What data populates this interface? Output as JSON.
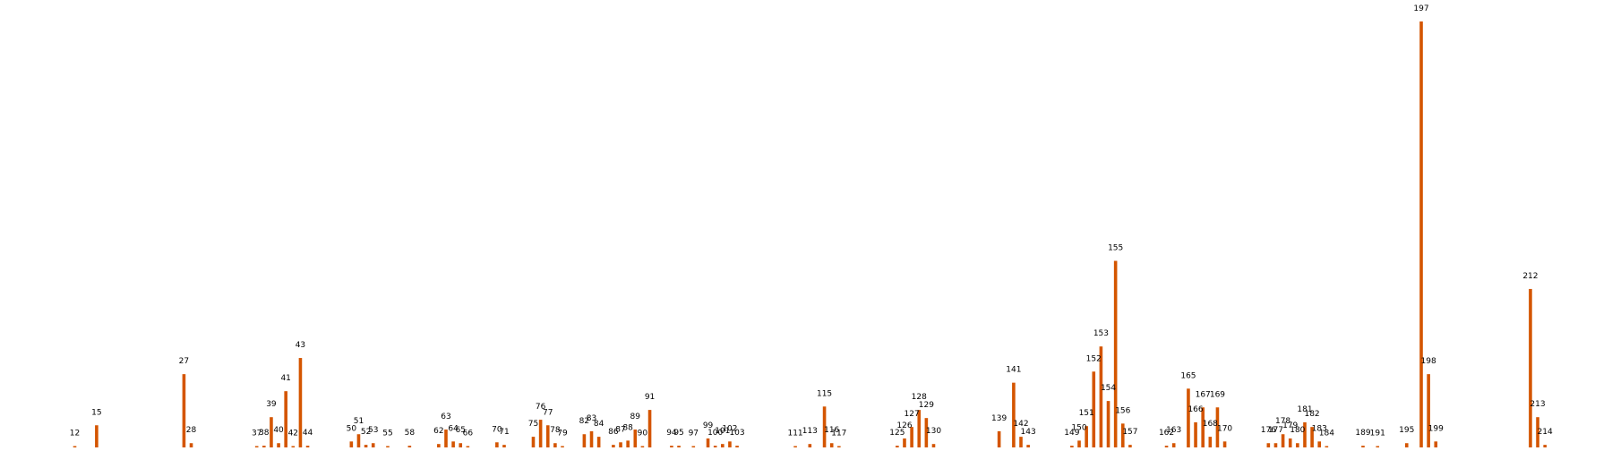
{
  "chart_data": {
    "type": "bar",
    "title": "",
    "xlabel": "",
    "ylabel": "",
    "grid": false,
    "legend": false,
    "bar_color": "#d45500",
    "ylim": [
      0,
      1
    ],
    "xlim": [
      0,
      225
    ],
    "bars": [
      {
        "x": 12,
        "label": "12",
        "value": 0.002
      },
      {
        "x": 15,
        "label": "15",
        "value": 0.052
      },
      {
        "x": 27,
        "label": "27",
        "value": 0.172
      },
      {
        "x": 28,
        "label": "28",
        "value": 0.01
      },
      {
        "x": 37,
        "label": "37",
        "value": 0.002
      },
      {
        "x": 38,
        "label": "38",
        "value": 0.004
      },
      {
        "x": 39,
        "label": "39",
        "value": 0.071
      },
      {
        "x": 40,
        "label": "40",
        "value": 0.01
      },
      {
        "x": 41,
        "label": "41",
        "value": 0.132
      },
      {
        "x": 42,
        "label": "42",
        "value": 0.002
      },
      {
        "x": 43,
        "label": "43",
        "value": 0.21
      },
      {
        "x": 44,
        "label": "44",
        "value": 0.004
      },
      {
        "x": 50,
        "label": "50",
        "value": 0.014
      },
      {
        "x": 51,
        "label": "51",
        "value": 0.031
      },
      {
        "x": 52,
        "label": "52",
        "value": 0.006
      },
      {
        "x": 53,
        "label": "53",
        "value": 0.01
      },
      {
        "x": 55,
        "label": "55",
        "value": 0.002
      },
      {
        "x": 58,
        "label": "58",
        "value": 0.004
      },
      {
        "x": 62,
        "label": "62",
        "value": 0.008
      },
      {
        "x": 63,
        "label": "63",
        "value": 0.042
      },
      {
        "x": 64,
        "label": "64",
        "value": 0.014
      },
      {
        "x": 65,
        "label": "65",
        "value": 0.01
      },
      {
        "x": 66,
        "label": "66",
        "value": 0.002
      },
      {
        "x": 70,
        "label": "70",
        "value": 0.012
      },
      {
        "x": 71,
        "label": "71",
        "value": 0.006
      },
      {
        "x": 75,
        "label": "75",
        "value": 0.025
      },
      {
        "x": 76,
        "label": "76",
        "value": 0.065
      },
      {
        "x": 77,
        "label": "77",
        "value": 0.052
      },
      {
        "x": 78,
        "label": "78",
        "value": 0.01
      },
      {
        "x": 79,
        "label": "79",
        "value": 0.002
      },
      {
        "x": 82,
        "label": "82",
        "value": 0.031
      },
      {
        "x": 83,
        "label": "83",
        "value": 0.038
      },
      {
        "x": 84,
        "label": "84",
        "value": 0.025
      },
      {
        "x": 86,
        "label": "86",
        "value": 0.006
      },
      {
        "x": 87,
        "label": "87",
        "value": 0.012
      },
      {
        "x": 88,
        "label": "88",
        "value": 0.016
      },
      {
        "x": 89,
        "label": "89",
        "value": 0.042
      },
      {
        "x": 90,
        "label": "90",
        "value": 0.002
      },
      {
        "x": 91,
        "label": "91",
        "value": 0.088
      },
      {
        "x": 94,
        "label": "94",
        "value": 0.004
      },
      {
        "x": 95,
        "label": "95",
        "value": 0.004
      },
      {
        "x": 97,
        "label": "97",
        "value": 0.002
      },
      {
        "x": 99,
        "label": "99",
        "value": 0.021
      },
      {
        "x": 100,
        "label": "100",
        "value": 0.004
      },
      {
        "x": 101,
        "label": "101",
        "value": 0.008
      },
      {
        "x": 102,
        "label": "102",
        "value": 0.014
      },
      {
        "x": 103,
        "label": "103",
        "value": 0.004
      },
      {
        "x": 111,
        "label": "111",
        "value": 0.002
      },
      {
        "x": 113,
        "label": "113",
        "value": 0.008
      },
      {
        "x": 115,
        "label": "115",
        "value": 0.096
      },
      {
        "x": 116,
        "label": "116",
        "value": 0.01
      },
      {
        "x": 117,
        "label": "117",
        "value": 0.002
      },
      {
        "x": 125,
        "label": "125",
        "value": 0.004
      },
      {
        "x": 126,
        "label": "126",
        "value": 0.021
      },
      {
        "x": 127,
        "label": "127",
        "value": 0.048
      },
      {
        "x": 128,
        "label": "128",
        "value": 0.088
      },
      {
        "x": 129,
        "label": "129",
        "value": 0.069
      },
      {
        "x": 130,
        "label": "130",
        "value": 0.008
      },
      {
        "x": 139,
        "label": "139",
        "value": 0.038
      },
      {
        "x": 141,
        "label": "141",
        "value": 0.152
      },
      {
        "x": 142,
        "label": "142",
        "value": 0.025
      },
      {
        "x": 143,
        "label": "143",
        "value": 0.006
      },
      {
        "x": 149,
        "label": "149",
        "value": 0.004
      },
      {
        "x": 150,
        "label": "150",
        "value": 0.016
      },
      {
        "x": 151,
        "label": "151",
        "value": 0.05
      },
      {
        "x": 152,
        "label": "152",
        "value": 0.178
      },
      {
        "x": 153,
        "label": "153",
        "value": 0.237
      },
      {
        "x": 154,
        "label": "154",
        "value": 0.109
      },
      {
        "x": 155,
        "label": "155",
        "value": 0.438
      },
      {
        "x": 156,
        "label": "156",
        "value": 0.056
      },
      {
        "x": 157,
        "label": "157",
        "value": 0.006
      },
      {
        "x": 162,
        "label": "162",
        "value": 0.004
      },
      {
        "x": 163,
        "label": "163",
        "value": 0.01
      },
      {
        "x": 165,
        "label": "165",
        "value": 0.138
      },
      {
        "x": 166,
        "label": "166",
        "value": 0.059
      },
      {
        "x": 167,
        "label": "167",
        "value": 0.094
      },
      {
        "x": 168,
        "label": "168",
        "value": 0.025
      },
      {
        "x": 169,
        "label": "169",
        "value": 0.094
      },
      {
        "x": 170,
        "label": "170",
        "value": 0.014
      },
      {
        "x": 176,
        "label": "176",
        "value": 0.01
      },
      {
        "x": 177,
        "label": "177",
        "value": 0.01
      },
      {
        "x": 178,
        "label": "178",
        "value": 0.031
      },
      {
        "x": 179,
        "label": "179",
        "value": 0.021
      },
      {
        "x": 180,
        "label": "180",
        "value": 0.01
      },
      {
        "x": 181,
        "label": "181",
        "value": 0.059
      },
      {
        "x": 182,
        "label": "182",
        "value": 0.048
      },
      {
        "x": 183,
        "label": "183",
        "value": 0.014
      },
      {
        "x": 184,
        "label": "184",
        "value": 0.002
      },
      {
        "x": 189,
        "label": "189",
        "value": 0.004
      },
      {
        "x": 191,
        "label": "191",
        "value": 0.002
      },
      {
        "x": 195,
        "label": "195",
        "value": 0.01
      },
      {
        "x": 197,
        "label": "197",
        "value": 1.0
      },
      {
        "x": 198,
        "label": "198",
        "value": 0.172
      },
      {
        "x": 199,
        "label": "199",
        "value": 0.014
      },
      {
        "x": 212,
        "label": "212",
        "value": 0.372
      },
      {
        "x": 213,
        "label": "213",
        "value": 0.071
      },
      {
        "x": 214,
        "label": "214",
        "value": 0.006
      }
    ]
  }
}
